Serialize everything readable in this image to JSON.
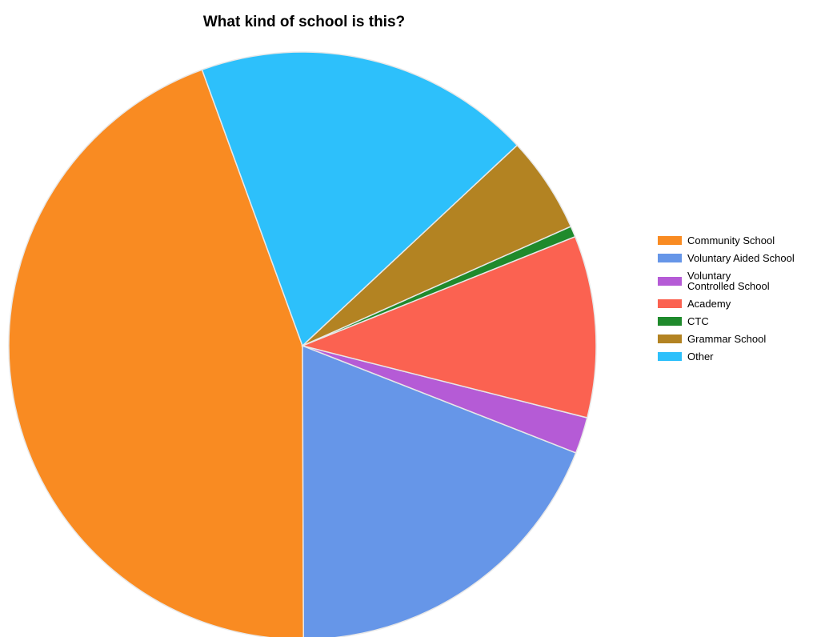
{
  "chart_data": {
    "type": "pie",
    "title": "What kind of school is this?",
    "legend_position": "right",
    "start_angle_deg": 110,
    "direction": "counterclockwise",
    "slices": [
      {
        "label": "Community School",
        "value": 44.5,
        "color": "#F98B22"
      },
      {
        "label": "Voluntary Aided School",
        "value": 19.0,
        "color": "#6696E8"
      },
      {
        "label": "Voluntary\nControlled School",
        "value": 2.0,
        "color": "#B55BD6"
      },
      {
        "label": "Academy",
        "value": 10.0,
        "color": "#FB6251"
      },
      {
        "label": "CTC",
        "value": 0.6,
        "color": "#1F8A2C"
      },
      {
        "label": "Grammar School",
        "value": 5.3,
        "color": "#B38322"
      },
      {
        "label": "Other",
        "value": 18.6,
        "color": "#2DC0FB"
      }
    ]
  }
}
